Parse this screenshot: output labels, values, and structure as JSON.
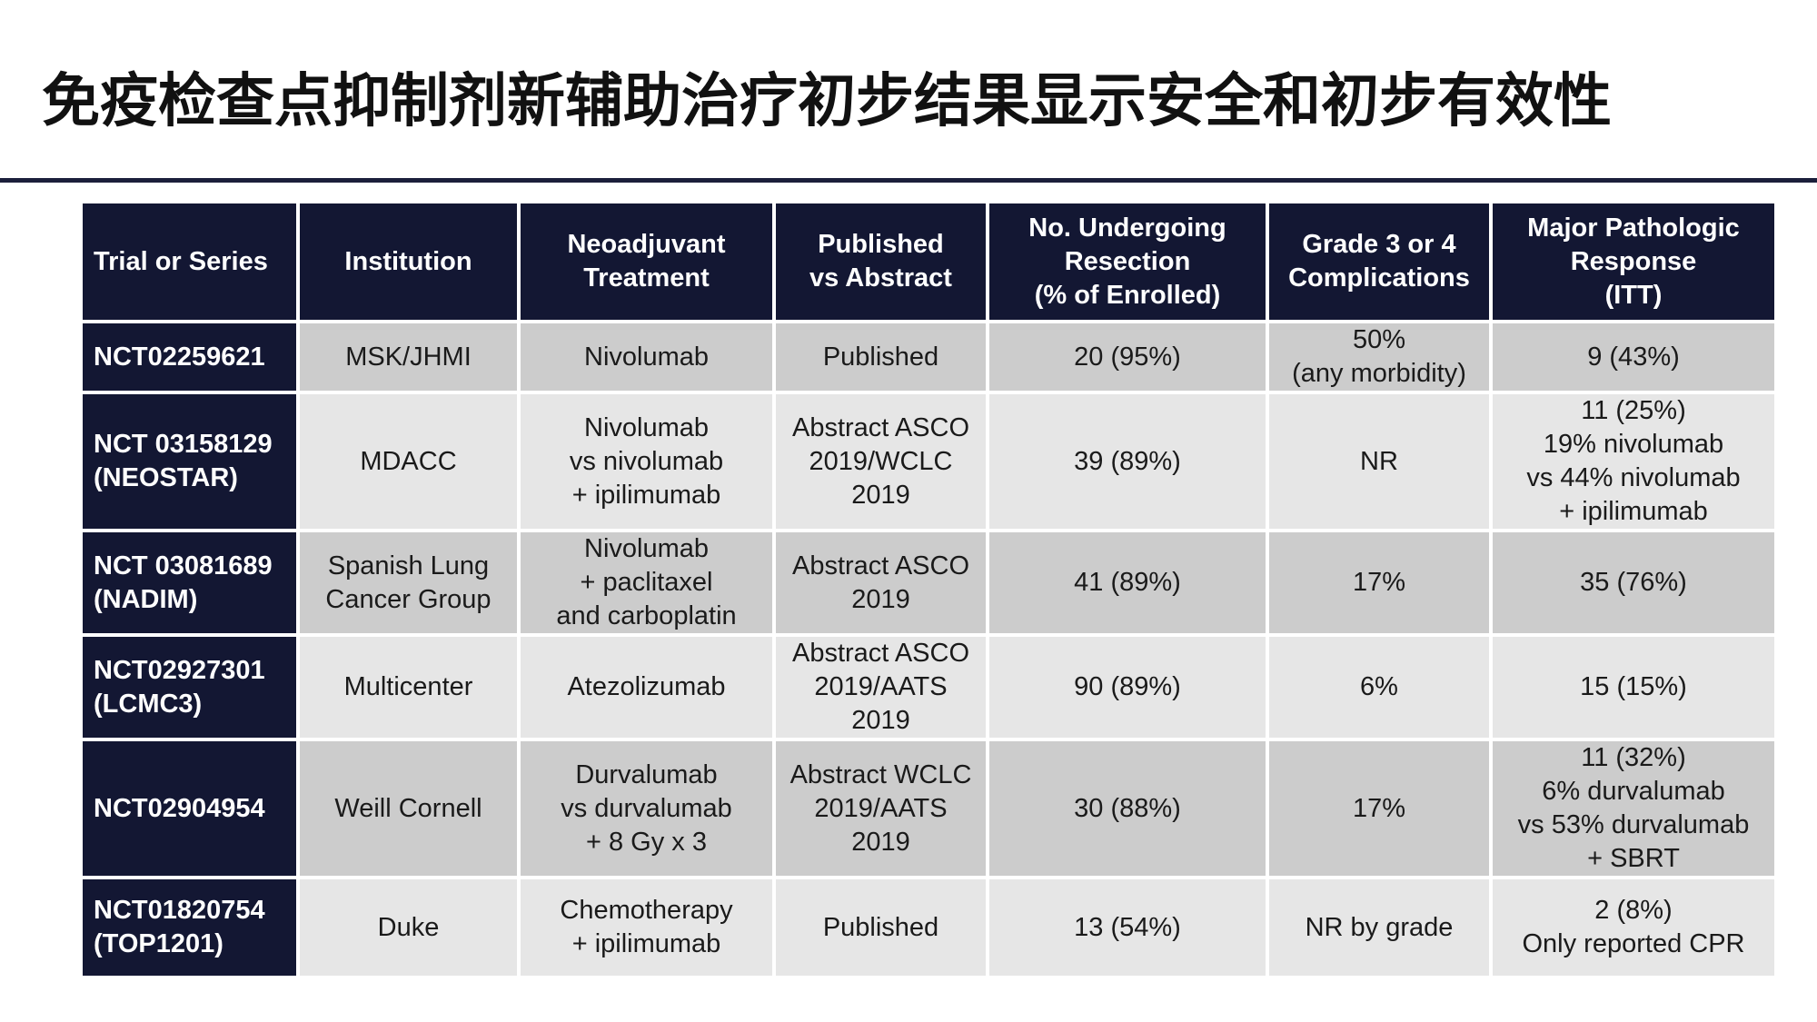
{
  "title": "免疫检查点抑制剂新辅助治疗初步结果显示安全和初步有效性",
  "table": {
    "headers": [
      "Trial or Series",
      "Institution",
      "Neoadjuvant\nTreatment",
      "Published\nvs Abstract",
      "No. Undergoing\nResection\n(% of Enrolled)",
      "Grade 3 or 4\nComplications",
      "Major Pathologic\nResponse\n(ITT)"
    ],
    "rows": [
      {
        "trial": "NCT02259621",
        "institution": "MSK/JHMI",
        "treatment": "Nivolumab",
        "publication": "Published",
        "resection": "20 (95%)",
        "complications": "50%\n(any morbidity)",
        "response": "9 (43%)"
      },
      {
        "trial": "NCT 03158129\n(NEOSTAR)",
        "institution": "MDACC",
        "treatment": "Nivolumab\nvs nivolumab\n+ ipilimumab",
        "publication": "Abstract ASCO\n2019/WCLC\n2019",
        "resection": "39 (89%)",
        "complications": "NR",
        "response": "11 (25%)\n19% nivolumab\nvs 44% nivolumab\n+ ipilimumab"
      },
      {
        "trial": "NCT 03081689\n(NADIM)",
        "institution": "Spanish Lung\nCancer Group",
        "treatment": "Nivolumab\n+ paclitaxel\nand carboplatin",
        "publication": "Abstract ASCO\n2019",
        "resection": "41 (89%)",
        "complications": "17%",
        "response": "35 (76%)"
      },
      {
        "trial": "NCT02927301\n(LCMC3)",
        "institution": "Multicenter",
        "treatment": "Atezolizumab",
        "publication": "Abstract ASCO\n2019/AATS\n2019",
        "resection": "90 (89%)",
        "complications": "6%",
        "response": "15 (15%)"
      },
      {
        "trial": "NCT02904954",
        "institution": "Weill Cornell",
        "treatment": "Durvalumab\nvs durvalumab\n+ 8 Gy x 3",
        "publication": "Abstract WCLC\n2019/AATS\n2019",
        "resection": "30 (88%)",
        "complications": "17%",
        "response": "11 (32%)\n6% durvalumab\nvs 53% durvalumab\n+ SBRT"
      },
      {
        "trial": "NCT01820754\n(TOP1201)",
        "institution": "Duke",
        "treatment": "Chemotherapy\n+ ipilimumab",
        "publication": "Published",
        "resection": "13 (54%)",
        "complications": "NR by grade",
        "response": "2 (8%)\nOnly reported CPR"
      }
    ]
  },
  "colors": {
    "header_bg": "#131733",
    "row_dark": "#cccccc",
    "row_light": "#e6e6e6",
    "divider": "#1b1f3b"
  }
}
